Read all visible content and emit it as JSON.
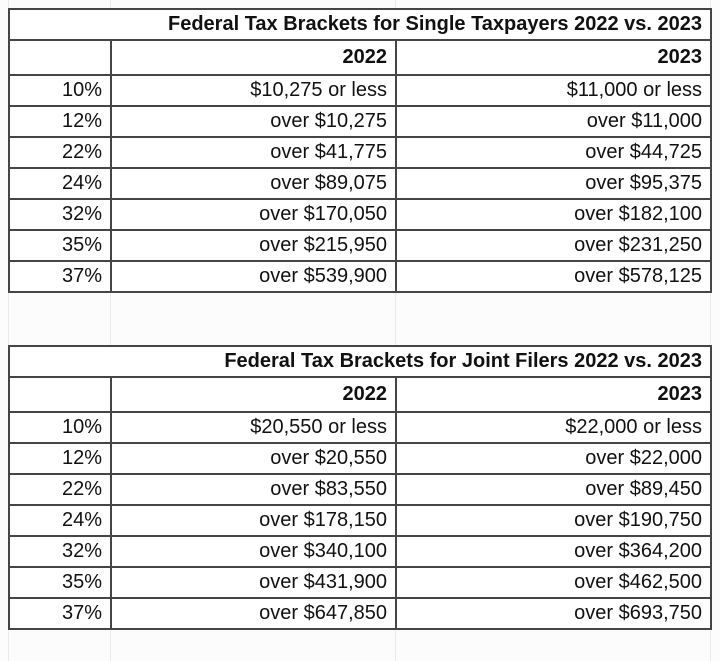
{
  "page": {
    "background_color": "#fcfcfc",
    "gridline_color": "#e9e9e9",
    "border_color": "#454545",
    "text_color": "#111111"
  },
  "tables": [
    {
      "title": "Federal Tax Brackets for Single Taxpayers 2022 vs. 2023",
      "columns": [
        "",
        "2022",
        "2023"
      ],
      "rows": [
        [
          "10%",
          "$10,275 or less",
          "$11,000 or less"
        ],
        [
          "12%",
          "over $10,275",
          "over $11,000"
        ],
        [
          "22%",
          "over $41,775",
          "over $44,725"
        ],
        [
          "24%",
          "over $89,075",
          "over $95,375"
        ],
        [
          "32%",
          "over $170,050",
          "over $182,100"
        ],
        [
          "35%",
          "over $215,950",
          "over $231,250"
        ],
        [
          "37%",
          "over $539,900",
          "over $578,125"
        ]
      ]
    },
    {
      "title": "Federal Tax Brackets for Joint Filers 2022 vs. 2023",
      "columns": [
        "",
        "2022",
        "2023"
      ],
      "rows": [
        [
          "10%",
          "$20,550 or less",
          "$22,000 or less"
        ],
        [
          "12%",
          "over $20,550",
          "over $22,000"
        ],
        [
          "22%",
          "over $83,550",
          "over $89,450"
        ],
        [
          "24%",
          "over $178,150",
          "over $190,750"
        ],
        [
          "32%",
          "over $340,100",
          "over $364,200"
        ],
        [
          "35%",
          "over $431,900",
          "over $462,500"
        ],
        [
          "37%",
          "over $647,850",
          "over $693,750"
        ]
      ]
    }
  ]
}
